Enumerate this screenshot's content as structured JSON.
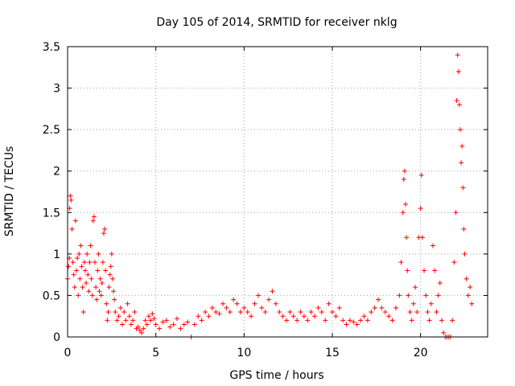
{
  "chart_data": {
    "type": "scatter",
    "title": "Day 105 of 2014, SRMTID for receiver nklg",
    "xlabel": "GPS time / hours",
    "ylabel": "SRMTID / TECUs",
    "xlim": [
      0,
      23.8
    ],
    "ylim": [
      0,
      3.5
    ],
    "x_ticks": [
      0,
      5,
      10,
      15,
      20
    ],
    "y_ticks": [
      0,
      0.5,
      1,
      1.5,
      2,
      2.5,
      3,
      3.5
    ],
    "x_tick_labels": [
      "0",
      "5",
      "10",
      "15",
      "20"
    ],
    "y_tick_labels": [
      "0",
      "0.5",
      "1",
      "1.5",
      "2",
      "2.5",
      "3",
      "3.5"
    ],
    "grid": true,
    "marker": "+",
    "color": "#ff0000",
    "series": [
      {
        "name": "SRMTID",
        "points": [
          [
            0.0,
            0.7
          ],
          [
            0.05,
            0.85
          ],
          [
            0.1,
            0.95
          ],
          [
            0.12,
            1.55
          ],
          [
            0.15,
            1.7
          ],
          [
            0.2,
            1.65
          ],
          [
            0.25,
            1.3
          ],
          [
            0.3,
            0.9
          ],
          [
            0.35,
            0.75
          ],
          [
            0.4,
            0.6
          ],
          [
            0.45,
            1.4
          ],
          [
            0.5,
            0.8
          ],
          [
            0.55,
            0.95
          ],
          [
            0.6,
            0.5
          ],
          [
            0.65,
            1.0
          ],
          [
            0.7,
            0.7
          ],
          [
            0.75,
            1.1
          ],
          [
            0.8,
            0.85
          ],
          [
            0.85,
            0.6
          ],
          [
            0.9,
            0.3
          ],
          [
            0.95,
            0.9
          ],
          [
            1.0,
            0.8
          ],
          [
            1.05,
            0.65
          ],
          [
            1.1,
            1.0
          ],
          [
            1.15,
            0.75
          ],
          [
            1.2,
            0.55
          ],
          [
            1.25,
            0.9
          ],
          [
            1.3,
            1.1
          ],
          [
            1.35,
            0.7
          ],
          [
            1.4,
            0.5
          ],
          [
            1.45,
            1.4
          ],
          [
            1.5,
            1.45
          ],
          [
            1.55,
            0.9
          ],
          [
            1.6,
            0.6
          ],
          [
            1.65,
            0.45
          ],
          [
            1.7,
            0.8
          ],
          [
            1.75,
            1.0
          ],
          [
            1.8,
            0.55
          ],
          [
            1.85,
            0.7
          ],
          [
            1.9,
            0.5
          ],
          [
            1.95,
            0.65
          ],
          [
            2.0,
            0.9
          ],
          [
            2.05,
            1.25
          ],
          [
            2.1,
            1.3
          ],
          [
            2.15,
            0.8
          ],
          [
            2.2,
            0.4
          ],
          [
            2.25,
            0.2
          ],
          [
            2.3,
            0.3
          ],
          [
            2.35,
            0.6
          ],
          [
            2.4,
            0.75
          ],
          [
            2.45,
            0.85
          ],
          [
            2.5,
            1.0
          ],
          [
            2.55,
            0.7
          ],
          [
            2.6,
            0.55
          ],
          [
            2.65,
            0.45
          ],
          [
            2.7,
            0.3
          ],
          [
            2.8,
            0.2
          ],
          [
            2.9,
            0.25
          ],
          [
            3.0,
            0.35
          ],
          [
            3.1,
            0.15
          ],
          [
            3.2,
            0.3
          ],
          [
            3.3,
            0.2
          ],
          [
            3.4,
            0.4
          ],
          [
            3.5,
            0.25
          ],
          [
            3.6,
            0.15
          ],
          [
            3.7,
            0.2
          ],
          [
            3.8,
            0.3
          ],
          [
            3.9,
            0.1
          ],
          [
            4.0,
            0.12
          ],
          [
            4.1,
            0.08
          ],
          [
            4.2,
            0.05
          ],
          [
            4.3,
            0.1
          ],
          [
            4.4,
            0.2
          ],
          [
            4.5,
            0.15
          ],
          [
            4.6,
            0.25
          ],
          [
            4.7,
            0.2
          ],
          [
            4.8,
            0.28
          ],
          [
            4.9,
            0.22
          ],
          [
            5.0,
            0.15
          ],
          [
            5.2,
            0.1
          ],
          [
            5.4,
            0.18
          ],
          [
            5.6,
            0.2
          ],
          [
            5.8,
            0.12
          ],
          [
            6.0,
            0.15
          ],
          [
            6.2,
            0.22
          ],
          [
            6.4,
            0.1
          ],
          [
            6.6,
            0.15
          ],
          [
            6.8,
            0.18
          ],
          [
            7.0,
            0.0
          ],
          [
            7.2,
            0.15
          ],
          [
            7.4,
            0.25
          ],
          [
            7.6,
            0.2
          ],
          [
            7.8,
            0.3
          ],
          [
            8.0,
            0.25
          ],
          [
            8.2,
            0.35
          ],
          [
            8.4,
            0.3
          ],
          [
            8.6,
            0.28
          ],
          [
            8.8,
            0.4
          ],
          [
            9.0,
            0.35
          ],
          [
            9.2,
            0.3
          ],
          [
            9.4,
            0.45
          ],
          [
            9.6,
            0.4
          ],
          [
            9.8,
            0.3
          ],
          [
            10.0,
            0.35
          ],
          [
            10.2,
            0.3
          ],
          [
            10.4,
            0.25
          ],
          [
            10.6,
            0.4
          ],
          [
            10.8,
            0.5
          ],
          [
            11.0,
            0.35
          ],
          [
            11.2,
            0.3
          ],
          [
            11.4,
            0.45
          ],
          [
            11.6,
            0.55
          ],
          [
            11.8,
            0.4
          ],
          [
            12.0,
            0.3
          ],
          [
            12.2,
            0.25
          ],
          [
            12.4,
            0.2
          ],
          [
            12.6,
            0.3
          ],
          [
            12.8,
            0.25
          ],
          [
            13.0,
            0.2
          ],
          [
            13.2,
            0.3
          ],
          [
            13.4,
            0.25
          ],
          [
            13.6,
            0.2
          ],
          [
            13.8,
            0.3
          ],
          [
            14.0,
            0.25
          ],
          [
            14.2,
            0.35
          ],
          [
            14.4,
            0.3
          ],
          [
            14.6,
            0.2
          ],
          [
            14.8,
            0.4
          ],
          [
            15.0,
            0.3
          ],
          [
            15.2,
            0.25
          ],
          [
            15.4,
            0.35
          ],
          [
            15.6,
            0.2
          ],
          [
            15.8,
            0.15
          ],
          [
            16.0,
            0.2
          ],
          [
            16.2,
            0.18
          ],
          [
            16.4,
            0.15
          ],
          [
            16.6,
            0.2
          ],
          [
            16.8,
            0.25
          ],
          [
            17.0,
            0.2
          ],
          [
            17.2,
            0.3
          ],
          [
            17.4,
            0.35
          ],
          [
            17.6,
            0.45
          ],
          [
            17.8,
            0.35
          ],
          [
            18.0,
            0.3
          ],
          [
            18.2,
            0.25
          ],
          [
            18.4,
            0.2
          ],
          [
            18.6,
            0.35
          ],
          [
            18.8,
            0.5
          ],
          [
            18.9,
            0.9
          ],
          [
            19.0,
            1.5
          ],
          [
            19.05,
            1.9
          ],
          [
            19.1,
            2.0
          ],
          [
            19.15,
            1.6
          ],
          [
            19.2,
            1.2
          ],
          [
            19.25,
            0.8
          ],
          [
            19.3,
            0.5
          ],
          [
            19.4,
            0.3
          ],
          [
            19.5,
            0.2
          ],
          [
            19.6,
            0.4
          ],
          [
            19.7,
            0.6
          ],
          [
            19.8,
            0.3
          ],
          [
            19.9,
            1.2
          ],
          [
            20.0,
            1.55
          ],
          [
            20.05,
            1.95
          ],
          [
            20.1,
            1.2
          ],
          [
            20.2,
            0.8
          ],
          [
            20.3,
            0.5
          ],
          [
            20.4,
            0.3
          ],
          [
            20.5,
            0.2
          ],
          [
            20.6,
            0.4
          ],
          [
            20.7,
            1.1
          ],
          [
            20.8,
            0.8
          ],
          [
            20.9,
            0.3
          ],
          [
            21.0,
            0.5
          ],
          [
            21.1,
            0.65
          ],
          [
            21.2,
            0.2
          ],
          [
            21.3,
            0.05
          ],
          [
            21.4,
            0.0
          ],
          [
            21.5,
            0.0
          ],
          [
            21.6,
            0.0
          ],
          [
            21.7,
            0.0
          ],
          [
            21.8,
            0.2
          ],
          [
            21.9,
            0.9
          ],
          [
            22.0,
            1.5
          ],
          [
            22.05,
            2.85
          ],
          [
            22.1,
            3.4
          ],
          [
            22.15,
            3.2
          ],
          [
            22.2,
            2.8
          ],
          [
            22.25,
            2.5
          ],
          [
            22.3,
            2.1
          ],
          [
            22.35,
            2.3
          ],
          [
            22.4,
            1.8
          ],
          [
            22.45,
            1.3
          ],
          [
            22.5,
            1.0
          ],
          [
            22.6,
            0.7
          ],
          [
            22.7,
            0.5
          ],
          [
            22.8,
            0.6
          ],
          [
            22.9,
            0.4
          ]
        ]
      }
    ]
  }
}
